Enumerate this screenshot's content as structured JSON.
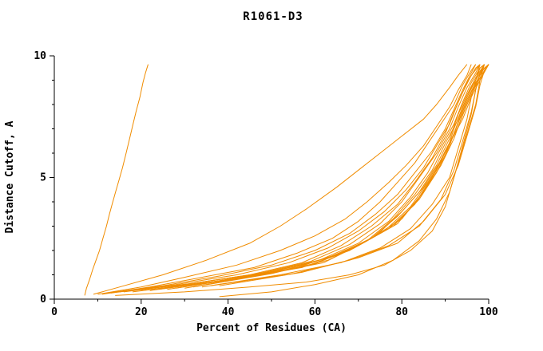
{
  "chart_data": {
    "type": "line",
    "title": "R1061-D3",
    "xlabel": "Percent of Residues (CA)",
    "ylabel": "Distance Cutoff, A",
    "xlim": [
      0,
      100
    ],
    "ylim": [
      0,
      10
    ],
    "grid": false,
    "legend_position": "none",
    "line_color": "#f08c00",
    "x_ticks": {
      "major": [
        0,
        20,
        40,
        60,
        80,
        100
      ],
      "labels": [
        "0",
        "20",
        "40",
        "60",
        "80",
        "100"
      ],
      "minor": [
        10,
        30,
        50,
        70,
        90
      ]
    },
    "y_ticks": {
      "major": [
        0,
        5,
        10
      ],
      "labels": [
        "0",
        "5",
        "10"
      ],
      "minor": [
        1,
        2,
        3,
        4,
        6,
        7,
        8,
        9
      ]
    },
    "series": [
      [
        [
          7,
          0.15
        ],
        [
          7.4,
          0.45
        ],
        [
          8.1,
          0.8
        ],
        [
          8.9,
          1.25
        ],
        [
          9.7,
          1.65
        ],
        [
          10.4,
          2.0
        ],
        [
          11.2,
          2.5
        ],
        [
          12,
          3.0
        ],
        [
          12.7,
          3.5
        ],
        [
          13.3,
          3.9
        ],
        [
          14.1,
          4.4
        ],
        [
          14.9,
          4.9
        ],
        [
          15.7,
          5.4
        ],
        [
          16.4,
          5.9
        ],
        [
          17.2,
          6.5
        ],
        [
          18,
          7.1
        ],
        [
          18.8,
          7.7
        ],
        [
          19.7,
          8.3
        ],
        [
          20.4,
          8.9
        ],
        [
          21,
          9.3
        ],
        [
          21.6,
          9.65
        ]
      ],
      [
        [
          9,
          0.2
        ],
        [
          15,
          0.5
        ],
        [
          25,
          1.0
        ],
        [
          35,
          1.6
        ],
        [
          45,
          2.3
        ],
        [
          52,
          3.0
        ],
        [
          58,
          3.7
        ],
        [
          65,
          4.6
        ],
        [
          70,
          5.3
        ],
        [
          75,
          6.0
        ],
        [
          80,
          6.7
        ],
        [
          85,
          7.4
        ],
        [
          88,
          8.0
        ],
        [
          91,
          8.7
        ],
        [
          93,
          9.2
        ],
        [
          95,
          9.65
        ]
      ],
      [
        [
          10,
          0.2
        ],
        [
          20,
          0.5
        ],
        [
          30,
          0.9
        ],
        [
          42,
          1.4
        ],
        [
          52,
          2.0
        ],
        [
          60,
          2.6
        ],
        [
          67,
          3.3
        ],
        [
          72,
          4.0
        ],
        [
          77,
          4.8
        ],
        [
          81,
          5.5
        ],
        [
          85,
          6.3
        ],
        [
          88,
          7.1
        ],
        [
          91,
          7.9
        ],
        [
          93,
          8.6
        ],
        [
          95,
          9.2
        ],
        [
          96,
          9.65
        ]
      ],
      [
        [
          11,
          0.2
        ],
        [
          22,
          0.5
        ],
        [
          34,
          0.9
        ],
        [
          46,
          1.3
        ],
        [
          56,
          1.9
        ],
        [
          64,
          2.5
        ],
        [
          70,
          3.2
        ],
        [
          75,
          4.0
        ],
        [
          79,
          4.8
        ],
        [
          83,
          5.6
        ],
        [
          86,
          6.4
        ],
        [
          89,
          7.2
        ],
        [
          92,
          8.0
        ],
        [
          94,
          8.8
        ],
        [
          96,
          9.4
        ],
        [
          97,
          9.65
        ]
      ],
      [
        [
          12,
          0.25
        ],
        [
          25,
          0.55
        ],
        [
          38,
          0.95
        ],
        [
          50,
          1.4
        ],
        [
          60,
          2.0
        ],
        [
          68,
          2.7
        ],
        [
          74,
          3.5
        ],
        [
          79,
          4.3
        ],
        [
          83,
          5.2
        ],
        [
          87,
          6.1
        ],
        [
          90,
          7.0
        ],
        [
          92,
          7.8
        ],
        [
          94,
          8.6
        ],
        [
          96,
          9.3
        ],
        [
          97,
          9.65
        ]
      ],
      [
        [
          13,
          0.25
        ],
        [
          28,
          0.6
        ],
        [
          42,
          1.0
        ],
        [
          54,
          1.5
        ],
        [
          63,
          2.1
        ],
        [
          70,
          2.8
        ],
        [
          76,
          3.6
        ],
        [
          81,
          4.5
        ],
        [
          85,
          5.4
        ],
        [
          88,
          6.3
        ],
        [
          91,
          7.2
        ],
        [
          93,
          8.1
        ],
        [
          95,
          8.9
        ],
        [
          97,
          9.5
        ],
        [
          98,
          9.65
        ]
      ],
      [
        [
          14,
          0.3
        ],
        [
          30,
          0.6
        ],
        [
          45,
          1.0
        ],
        [
          57,
          1.5
        ],
        [
          66,
          2.2
        ],
        [
          73,
          3.0
        ],
        [
          79,
          3.9
        ],
        [
          83,
          4.8
        ],
        [
          87,
          5.8
        ],
        [
          90,
          6.8
        ],
        [
          92,
          7.7
        ],
        [
          94,
          8.5
        ],
        [
          96,
          9.2
        ],
        [
          98,
          9.65
        ]
      ],
      [
        [
          15,
          0.3
        ],
        [
          32,
          0.65
        ],
        [
          47,
          1.05
        ],
        [
          59,
          1.55
        ],
        [
          68,
          2.25
        ],
        [
          75,
          3.1
        ],
        [
          80,
          4.0
        ],
        [
          84,
          5.0
        ],
        [
          88,
          6.0
        ],
        [
          91,
          7.0
        ],
        [
          93,
          7.9
        ],
        [
          95,
          8.7
        ],
        [
          97,
          9.3
        ],
        [
          98,
          9.65
        ]
      ],
      [
        [
          16,
          0.3
        ],
        [
          34,
          0.7
        ],
        [
          49,
          1.1
        ],
        [
          61,
          1.6
        ],
        [
          70,
          2.3
        ],
        [
          77,
          3.2
        ],
        [
          82,
          4.2
        ],
        [
          86,
          5.2
        ],
        [
          89,
          6.2
        ],
        [
          92,
          7.2
        ],
        [
          94,
          8.1
        ],
        [
          96,
          8.9
        ],
        [
          98,
          9.5
        ],
        [
          99,
          9.65
        ]
      ],
      [
        [
          18,
          0.3
        ],
        [
          36,
          0.7
        ],
        [
          51,
          1.15
        ],
        [
          63,
          1.7
        ],
        [
          72,
          2.4
        ],
        [
          78,
          3.3
        ],
        [
          83,
          4.3
        ],
        [
          87,
          5.3
        ],
        [
          90,
          6.4
        ],
        [
          93,
          7.4
        ],
        [
          95,
          8.3
        ],
        [
          97,
          9.0
        ],
        [
          98,
          9.5
        ],
        [
          99,
          9.65
        ]
      ],
      [
        [
          20,
          0.35
        ],
        [
          38,
          0.75
        ],
        [
          53,
          1.2
        ],
        [
          65,
          1.8
        ],
        [
          73,
          2.5
        ],
        [
          79,
          3.4
        ],
        [
          84,
          4.4
        ],
        [
          88,
          5.5
        ],
        [
          91,
          6.6
        ],
        [
          93,
          7.6
        ],
        [
          95,
          8.4
        ],
        [
          97,
          9.1
        ],
        [
          99,
          9.65
        ]
      ],
      [
        [
          22,
          0.35
        ],
        [
          40,
          0.8
        ],
        [
          55,
          1.25
        ],
        [
          66,
          1.9
        ],
        [
          74,
          2.6
        ],
        [
          80,
          3.6
        ],
        [
          85,
          4.6
        ],
        [
          89,
          5.7
        ],
        [
          92,
          6.8
        ],
        [
          94,
          7.7
        ],
        [
          96,
          8.5
        ],
        [
          98,
          9.2
        ],
        [
          99,
          9.65
        ]
      ],
      [
        [
          24,
          0.4
        ],
        [
          42,
          0.85
        ],
        [
          57,
          1.3
        ],
        [
          68,
          2.0
        ],
        [
          76,
          2.8
        ],
        [
          82,
          3.8
        ],
        [
          86,
          4.8
        ],
        [
          90,
          5.9
        ],
        [
          92,
          7.0
        ],
        [
          94,
          7.9
        ],
        [
          96,
          8.7
        ],
        [
          98,
          9.3
        ],
        [
          100,
          9.65
        ]
      ],
      [
        [
          26,
          0.4
        ],
        [
          44,
          0.9
        ],
        [
          59,
          1.4
        ],
        [
          69,
          2.1
        ],
        [
          77,
          2.9
        ],
        [
          83,
          3.9
        ],
        [
          87,
          5.0
        ],
        [
          90,
          6.1
        ],
        [
          93,
          7.1
        ],
        [
          95,
          8.0
        ],
        [
          97,
          8.8
        ],
        [
          99,
          9.4
        ],
        [
          100,
          9.65
        ]
      ],
      [
        [
          28,
          0.45
        ],
        [
          46,
          0.95
        ],
        [
          60,
          1.45
        ],
        [
          70,
          2.2
        ],
        [
          78,
          3.0
        ],
        [
          84,
          4.1
        ],
        [
          88,
          5.2
        ],
        [
          91,
          6.3
        ],
        [
          93,
          7.3
        ],
        [
          95,
          8.2
        ],
        [
          97,
          8.9
        ],
        [
          99,
          9.5
        ],
        [
          100,
          9.65
        ]
      ],
      [
        [
          30,
          0.45
        ],
        [
          48,
          1.0
        ],
        [
          62,
          1.5
        ],
        [
          71,
          2.3
        ],
        [
          79,
          3.1
        ],
        [
          84,
          4.2
        ],
        [
          88,
          5.3
        ],
        [
          91,
          6.4
        ],
        [
          94,
          7.4
        ],
        [
          96,
          8.3
        ],
        [
          98,
          9.0
        ],
        [
          100,
          9.65
        ]
      ],
      [
        [
          32,
          0.5
        ],
        [
          50,
          1.05
        ],
        [
          63,
          1.6
        ],
        [
          72,
          2.4
        ],
        [
          80,
          3.3
        ],
        [
          85,
          4.4
        ],
        [
          89,
          5.5
        ],
        [
          92,
          6.6
        ],
        [
          94,
          7.6
        ],
        [
          96,
          8.4
        ],
        [
          98,
          9.1
        ],
        [
          100,
          9.65
        ]
      ],
      [
        [
          34,
          0.5
        ],
        [
          52,
          1.0
        ],
        [
          66,
          1.5
        ],
        [
          75,
          2.1
        ],
        [
          82,
          2.9
        ],
        [
          87,
          3.9
        ],
        [
          91,
          5.0
        ],
        [
          93,
          6.2
        ],
        [
          95,
          7.4
        ],
        [
          96,
          8.3
        ],
        [
          97,
          9.0
        ],
        [
          98,
          9.65
        ]
      ],
      [
        [
          36,
          0.55
        ],
        [
          55,
          1.05
        ],
        [
          68,
          1.6
        ],
        [
          77,
          2.2
        ],
        [
          84,
          3.0
        ],
        [
          89,
          4.1
        ],
        [
          92,
          5.3
        ],
        [
          94,
          6.5
        ],
        [
          96,
          7.7
        ],
        [
          97,
          8.6
        ],
        [
          98,
          9.3
        ],
        [
          99,
          9.65
        ]
      ],
      [
        [
          38,
          0.55
        ],
        [
          57,
          1.1
        ],
        [
          70,
          1.7
        ],
        [
          79,
          2.3
        ],
        [
          85,
          3.2
        ],
        [
          90,
          4.3
        ],
        [
          93,
          5.5
        ],
        [
          95,
          6.7
        ],
        [
          97,
          7.9
        ],
        [
          98,
          8.8
        ],
        [
          99,
          9.4
        ],
        [
          100,
          9.65
        ]
      ],
      [
        [
          38,
          0.1
        ],
        [
          50,
          0.3
        ],
        [
          60,
          0.6
        ],
        [
          70,
          1.0
        ],
        [
          78,
          1.6
        ],
        [
          84,
          2.4
        ],
        [
          88,
          3.3
        ],
        [
          91,
          4.4
        ],
        [
          93,
          5.6
        ],
        [
          95,
          6.8
        ],
        [
          97,
          8.0
        ],
        [
          98,
          9.0
        ],
        [
          99,
          9.65
        ]
      ],
      [
        [
          14,
          0.15
        ],
        [
          30,
          0.3
        ],
        [
          45,
          0.5
        ],
        [
          58,
          0.7
        ],
        [
          68,
          1.0
        ],
        [
          76,
          1.4
        ],
        [
          82,
          2.0
        ],
        [
          87,
          2.8
        ],
        [
          90,
          3.8
        ],
        [
          92,
          5.0
        ],
        [
          94,
          6.3
        ],
        [
          96,
          7.6
        ],
        [
          97,
          8.6
        ],
        [
          98,
          9.3
        ],
        [
          99,
          9.65
        ]
      ]
    ]
  }
}
